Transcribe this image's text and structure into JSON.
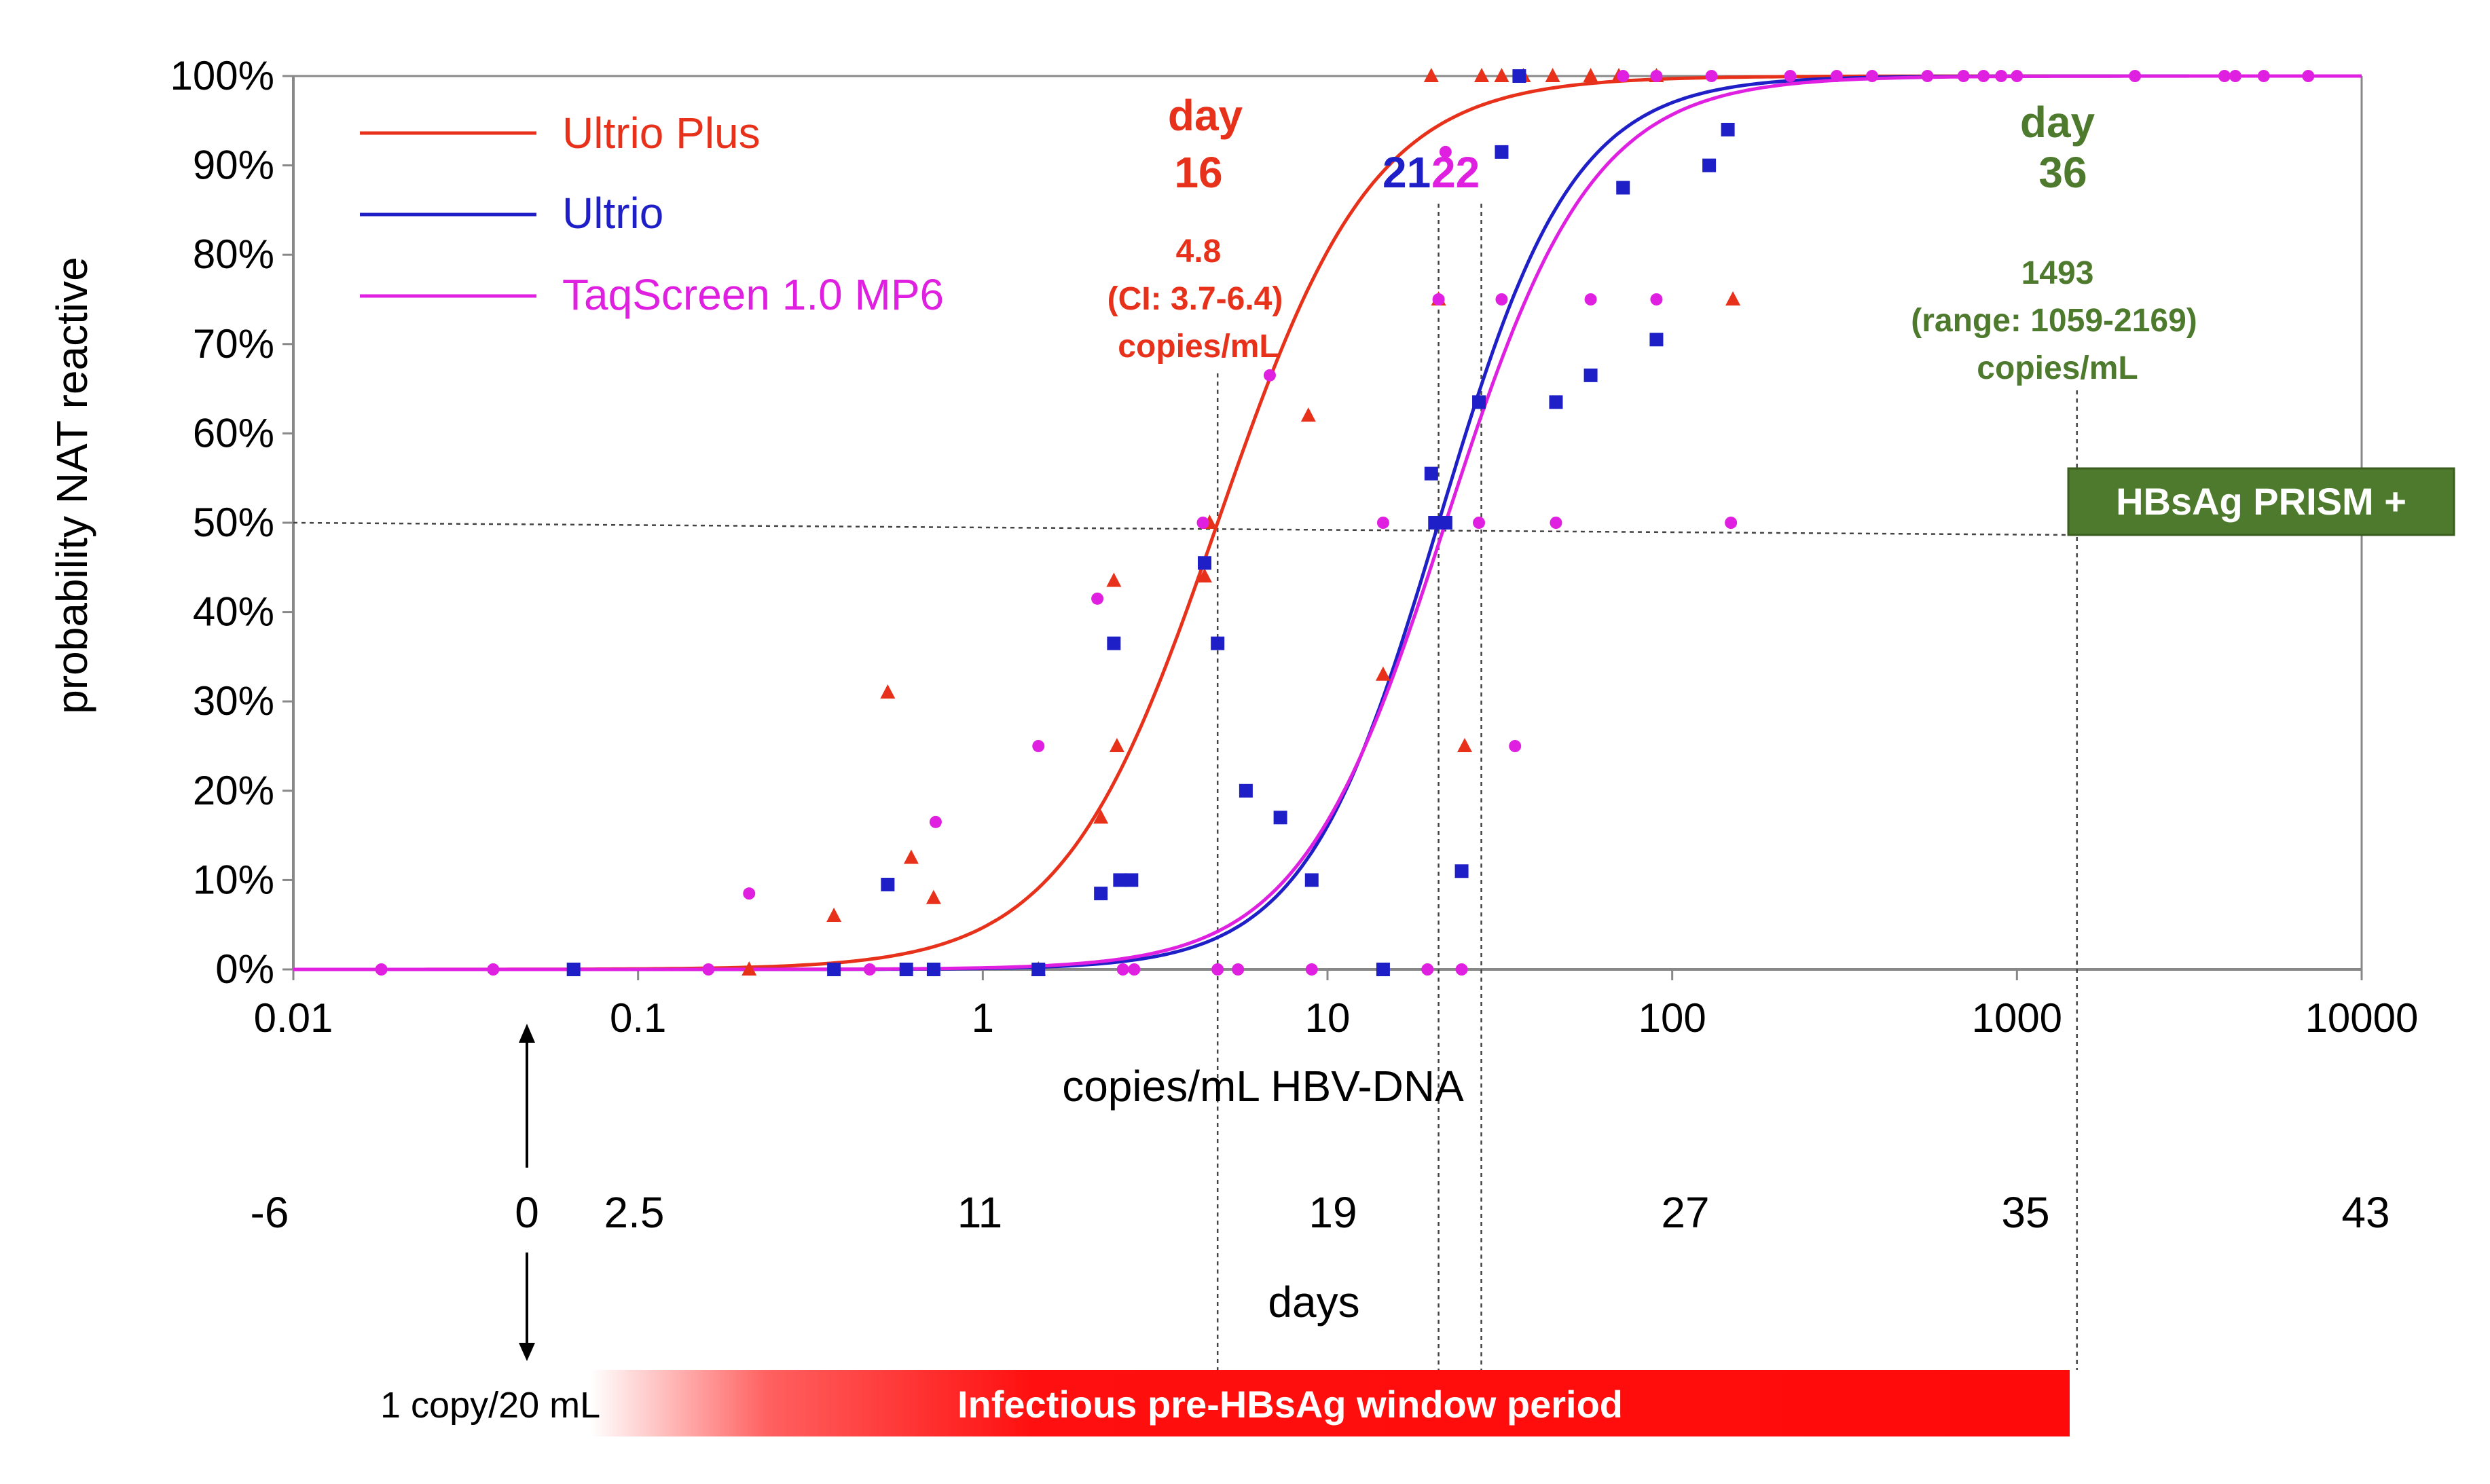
{
  "chart_data": {
    "type": "scatter",
    "xscale": "log",
    "xlim": [
      0.01,
      10000
    ],
    "ylim": [
      0,
      100
    ],
    "xlabel": "copies/mL HBV-DNA",
    "ylabel": "probability NAT reactive",
    "x_ticks": [
      "0.01",
      "0.1",
      "1",
      "10",
      "100",
      "1000",
      "10000"
    ],
    "y_ticks": [
      "0%",
      "10%",
      "20%",
      "30%",
      "40%",
      "50%",
      "60%",
      "70%",
      "80%",
      "90%",
      "100%"
    ],
    "legend_position": "top-left",
    "series": [
      {
        "name": "Ultrio Plus",
        "color": "#e8311a",
        "marker": "triangle",
        "fit_50": 4.8,
        "fit_slope": 3.1,
        "points": [
          [
            0.21,
            0
          ],
          [
            0.37,
            6
          ],
          [
            0.53,
            31
          ],
          [
            0.62,
            12.5
          ],
          [
            0.72,
            8
          ],
          [
            1.45,
            0
          ],
          [
            2.2,
            17
          ],
          [
            2.4,
            43.5
          ],
          [
            2.45,
            25
          ],
          [
            4.4,
            44
          ],
          [
            4.55,
            50
          ],
          [
            8.8,
            62
          ],
          [
            14.5,
            33
          ],
          [
            21,
            75
          ],
          [
            25,
            25
          ],
          [
            20,
            100
          ],
          [
            28,
            100
          ],
          [
            32,
            100
          ],
          [
            37,
            100
          ],
          [
            45,
            100
          ],
          [
            58,
            100
          ],
          [
            70,
            100
          ],
          [
            90,
            100
          ],
          [
            150,
            75
          ]
        ]
      },
      {
        "name": "Ultrio",
        "color": "#1f1fc8",
        "marker": "square",
        "fit_50": 21,
        "fit_slope": 3.6,
        "points": [
          [
            0.065,
            0
          ],
          [
            0.37,
            0
          ],
          [
            0.53,
            9.5
          ],
          [
            0.6,
            0
          ],
          [
            0.72,
            0
          ],
          [
            1.45,
            0
          ],
          [
            2.2,
            8.5
          ],
          [
            2.4,
            36.5
          ],
          [
            2.5,
            10
          ],
          [
            2.7,
            10
          ],
          [
            4.4,
            45.5
          ],
          [
            4.8,
            36.5
          ],
          [
            5.8,
            20
          ],
          [
            7.3,
            17
          ],
          [
            9,
            10
          ],
          [
            14.5,
            0
          ],
          [
            20,
            55.5
          ],
          [
            20.5,
            50
          ],
          [
            22,
            50
          ],
          [
            24.5,
            11
          ],
          [
            27.5,
            63.5
          ],
          [
            32,
            91.5
          ],
          [
            36,
            100
          ],
          [
            46,
            63.5
          ],
          [
            58,
            66.5
          ],
          [
            72,
            87.5
          ],
          [
            90,
            70.5
          ],
          [
            128,
            90
          ],
          [
            145,
            94
          ]
        ]
      },
      {
        "name": "TaqScreen 1.0 MP6",
        "color": "#e020e0",
        "marker": "circle",
        "fit_50": 22,
        "fit_slope": 3.3,
        "points": [
          [
            0.018,
            0
          ],
          [
            0.038,
            0
          ],
          [
            0.16,
            0
          ],
          [
            0.21,
            8.5
          ],
          [
            0.47,
            0
          ],
          [
            0.73,
            16.5
          ],
          [
            1.45,
            25
          ],
          [
            2.15,
            41.5
          ],
          [
            2.55,
            0
          ],
          [
            2.75,
            0
          ],
          [
            4.35,
            50
          ],
          [
            4.8,
            0
          ],
          [
            5.5,
            0
          ],
          [
            6.8,
            66.5
          ],
          [
            9,
            0
          ],
          [
            14.5,
            50
          ],
          [
            19.5,
            0
          ],
          [
            21,
            75
          ],
          [
            22,
            91.5
          ],
          [
            24.5,
            0
          ],
          [
            27.5,
            50
          ],
          [
            32,
            75
          ],
          [
            35,
            25
          ],
          [
            46,
            50
          ],
          [
            58,
            75
          ],
          [
            90,
            75
          ],
          [
            148,
            50
          ],
          [
            72,
            100
          ],
          [
            90,
            100
          ],
          [
            130,
            100
          ],
          [
            220,
            100
          ],
          [
            300,
            100
          ],
          [
            380,
            100
          ],
          [
            550,
            100
          ],
          [
            700,
            100
          ],
          [
            800,
            100
          ],
          [
            900,
            100
          ],
          [
            1000,
            100
          ],
          [
            2200,
            100
          ],
          [
            4000,
            100
          ],
          [
            4300,
            100
          ],
          [
            5200,
            100
          ],
          [
            7000,
            100
          ]
        ]
      }
    ],
    "annotations": [
      {
        "day": "day\n16",
        "detail": [
          "4.8",
          "(CI: 3.7-6.4)",
          "copies/mL"
        ],
        "x": 4.8,
        "color": "#e8311a"
      },
      {
        "day_a": "21",
        "day_b": "22",
        "color_a": "#1f1fc8",
        "color_b": "#e020e0"
      },
      {
        "day": "day\n36",
        "detail": [
          "1493",
          "(range: 1059-2169)",
          "copies/mL"
        ],
        "x": 1493,
        "color": "#4e7a2e"
      }
    ],
    "secondary_axis": {
      "label": "days",
      "ticks": [
        "-6",
        "0",
        "2.5",
        "11",
        "19",
        "27",
        "35",
        "43"
      ]
    },
    "badge": "HBsAg PRISM +",
    "window_band": "Infectious pre-HBsAg window period",
    "origin_label": "1 copy/20 mL"
  },
  "legend": [
    {
      "label": "Ultrio Plus",
      "color": "#e8311a"
    },
    {
      "label": "Ultrio",
      "color": "#1f1fc8"
    },
    {
      "label": "TaqScreen 1.0 MP6",
      "color": "#e020e0"
    }
  ],
  "ann16": {
    "day_word": "day",
    "day_num": "16",
    "l1": "4.8",
    "l2": "(CI: 3.7-6.4)",
    "l3": "copies/mL"
  },
  "ann2122": {
    "a": "21",
    "b": "22"
  },
  "ann36": {
    "day_word": "day",
    "day_num": "36",
    "l1": "1493",
    "l2": "(range: 1059-2169)",
    "l3": "copies/mL"
  },
  "xlabel": "copies/mL HBV-DNA",
  "ylabel": "probability NAT reactive",
  "days_label": "days",
  "badge": "HBsAg PRISM +",
  "band_label": "Infectious pre-HBsAg window period",
  "origin_label": "1 copy/20 mL"
}
